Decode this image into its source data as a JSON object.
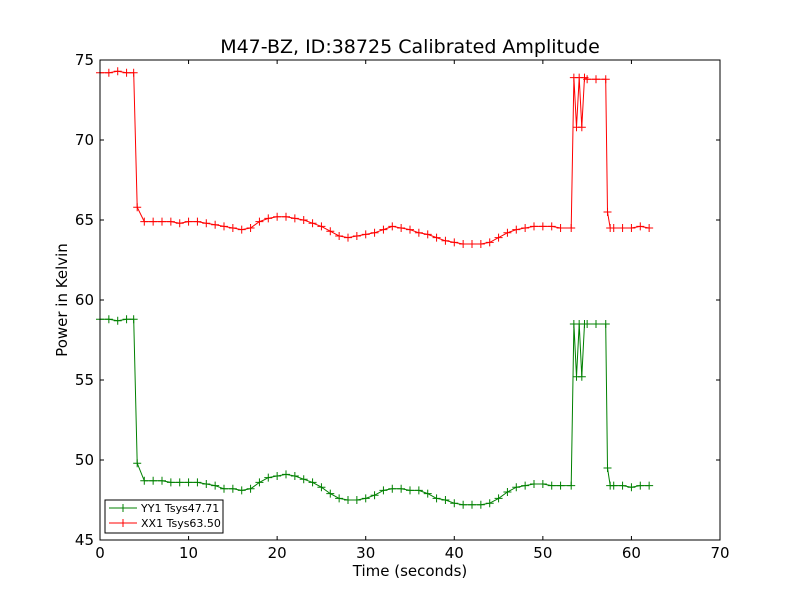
{
  "chart_data": {
    "type": "line",
    "title": "M47-BZ, ID:38725 Calibrated Amplitude",
    "xlabel": "Time (seconds)",
    "ylabel": "Power in Kelvin",
    "xlim": [
      0,
      70
    ],
    "ylim": [
      45,
      75
    ],
    "x_ticks": [
      "0",
      "10",
      "20",
      "30",
      "40",
      "50",
      "60",
      "70"
    ],
    "y_ticks": [
      "45",
      "50",
      "55",
      "60",
      "65",
      "70",
      "75"
    ],
    "grid": false,
    "legend_position": "lower-left",
    "marker": "+",
    "series": [
      {
        "name": "YY1 Tsys47.71",
        "color": "#008000",
        "x": [
          0,
          1,
          2,
          3,
          3.8,
          4.2,
          5,
          6,
          7,
          8,
          9,
          10,
          11,
          12,
          13,
          14,
          15,
          16,
          17,
          18,
          19,
          20,
          21,
          22,
          23,
          24,
          25,
          26,
          27,
          28,
          29,
          30,
          31,
          32,
          33,
          34,
          35,
          36,
          37,
          38,
          39,
          40,
          41,
          42,
          43,
          44,
          45,
          46,
          47,
          48,
          49,
          50,
          51,
          52,
          53.2,
          53.5,
          53.8,
          54.1,
          54.4,
          54.7,
          55,
          56,
          57.1,
          57.3,
          57.6,
          58,
          59,
          60,
          61,
          62
        ],
        "values": [
          58.8,
          58.8,
          58.7,
          58.8,
          58.8,
          49.8,
          48.7,
          48.7,
          48.7,
          48.6,
          48.6,
          48.6,
          48.6,
          48.5,
          48.4,
          48.2,
          48.2,
          48.1,
          48.2,
          48.6,
          48.9,
          49.0,
          49.1,
          49.0,
          48.8,
          48.6,
          48.3,
          47.9,
          47.6,
          47.5,
          47.5,
          47.6,
          47.8,
          48.1,
          48.2,
          48.2,
          48.1,
          48.1,
          47.9,
          47.6,
          47.5,
          47.3,
          47.2,
          47.2,
          47.2,
          47.3,
          47.6,
          48.0,
          48.3,
          48.4,
          48.5,
          48.5,
          48.4,
          48.4,
          48.4,
          58.5,
          55.2,
          58.5,
          55.2,
          58.5,
          58.5,
          58.5,
          58.5,
          49.5,
          48.4,
          48.4,
          48.4,
          48.3,
          48.4,
          48.4
        ]
      },
      {
        "name": "XX1 Tsys63.50",
        "color": "#ff0000",
        "x": [
          0,
          1,
          2,
          3,
          3.8,
          4.2,
          5,
          6,
          7,
          8,
          9,
          10,
          11,
          12,
          13,
          14,
          15,
          16,
          17,
          18,
          19,
          20,
          21,
          22,
          23,
          24,
          25,
          26,
          27,
          28,
          29,
          30,
          31,
          32,
          33,
          34,
          35,
          36,
          37,
          38,
          39,
          40,
          41,
          42,
          43,
          44,
          45,
          46,
          47,
          48,
          49,
          50,
          51,
          52,
          53.2,
          53.5,
          53.8,
          54.1,
          54.4,
          54.7,
          55,
          56,
          57.1,
          57.3,
          57.6,
          58,
          59,
          60,
          61,
          62
        ],
        "values": [
          74.2,
          74.2,
          74.3,
          74.2,
          74.2,
          65.8,
          64.9,
          64.9,
          64.9,
          64.9,
          64.8,
          64.9,
          64.9,
          64.8,
          64.7,
          64.6,
          64.5,
          64.4,
          64.5,
          64.9,
          65.1,
          65.2,
          65.2,
          65.1,
          65.0,
          64.8,
          64.6,
          64.3,
          64.0,
          63.9,
          64.0,
          64.1,
          64.2,
          64.4,
          64.6,
          64.5,
          64.4,
          64.2,
          64.1,
          63.9,
          63.7,
          63.6,
          63.5,
          63.5,
          63.5,
          63.6,
          63.9,
          64.2,
          64.4,
          64.5,
          64.6,
          64.6,
          64.6,
          64.5,
          64.5,
          73.9,
          70.8,
          73.9,
          70.8,
          73.9,
          73.8,
          73.8,
          73.8,
          65.5,
          64.5,
          64.5,
          64.5,
          64.5,
          64.6,
          64.5
        ]
      }
    ]
  }
}
